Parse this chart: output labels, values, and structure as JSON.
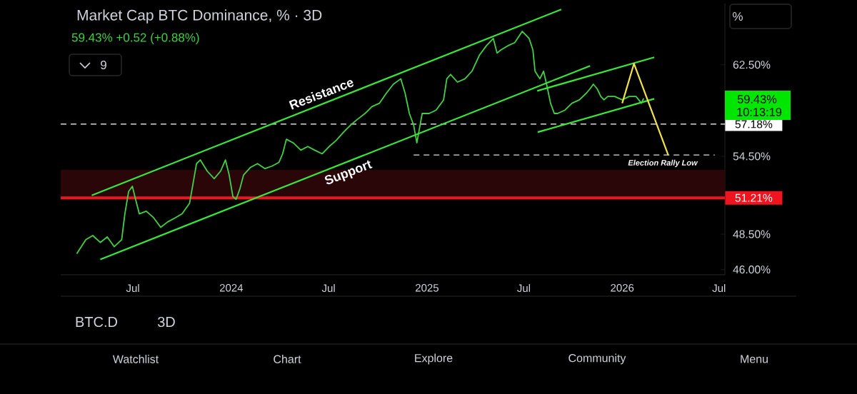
{
  "chart_data": {
    "type": "line",
    "title": "Market Cap BTC Dominance, % · 3D",
    "subtitle": "59.43% +0.52 (+0.88%)",
    "log": "y",
    "xlim": [
      "2023-02-16",
      "2026-07-12"
    ],
    "ylim": [
      45.64,
      68.5
    ],
    "xticks": [
      {
        "value": "2023-07-01",
        "label": "Jul"
      },
      {
        "value": "2024-01-01",
        "label": "2024"
      },
      {
        "value": "2024-07-01",
        "label": "Jul"
      },
      {
        "value": "2025-01-01",
        "label": "2025"
      },
      {
        "value": "2025-07-01",
        "label": "Jul"
      },
      {
        "value": "2026-01-01",
        "label": "2026"
      },
      {
        "value": "2026-07-01",
        "label": "Jul"
      }
    ],
    "yticks": [
      {
        "value": 46,
        "label": "46.00%"
      },
      {
        "value": 48.5,
        "label": "48.50%"
      },
      {
        "value": 54.5,
        "label": "54.50%"
      },
      {
        "value": 62.5,
        "label": "62.50%"
      }
    ],
    "series": [
      {
        "color": "#43d143",
        "x": [
          "2023-03-18",
          "2023-04-04",
          "2023-04-17",
          "2023-05-01",
          "2023-05-14",
          "2023-05-27",
          "2023-06-10",
          "2023-06-16",
          "2023-06-23",
          "2023-06-30",
          "2023-07-06",
          "2023-07-13",
          "2023-07-26",
          "2023-08-09",
          "2023-08-22",
          "2023-09-04",
          "2023-09-18",
          "2023-10-01",
          "2023-10-15",
          "2023-10-21",
          "2023-10-28",
          "2023-11-04",
          "2023-11-17",
          "2023-11-30",
          "2023-12-12",
          "2023-12-21",
          "2023-12-28",
          "2024-01-04",
          "2024-01-10",
          "2024-01-17",
          "2024-01-24",
          "2024-02-06",
          "2024-02-19",
          "2024-03-04",
          "2024-03-17",
          "2024-03-30",
          "2024-04-06",
          "2024-04-13",
          "2024-04-26",
          "2024-05-10",
          "2024-05-23",
          "2024-06-05",
          "2024-06-19",
          "2024-07-02",
          "2024-07-15",
          "2024-07-29",
          "2024-08-11",
          "2024-08-24",
          "2024-09-07",
          "2024-09-20",
          "2024-10-04",
          "2024-10-17",
          "2024-10-30",
          "2024-11-13",
          "2024-11-21",
          "2024-11-29",
          "2024-12-07",
          "2024-12-13",
          "2024-12-23",
          "2025-01-05",
          "2025-01-18",
          "2025-02-01",
          "2025-02-07",
          "2025-02-14",
          "2025-02-27",
          "2025-03-13",
          "2025-03-26",
          "2025-04-09",
          "2025-04-22",
          "2025-05-05",
          "2025-05-12",
          "2025-05-19",
          "2025-06-01",
          "2025-06-14",
          "2025-06-28",
          "2025-07-11",
          "2025-07-18",
          "2025-07-22",
          "2025-07-31",
          "2025-08-07",
          "2025-08-13",
          "2025-08-20",
          "2025-08-27",
          "2025-09-02",
          "2025-09-16",
          "2025-09-29",
          "2025-10-13",
          "2025-10-26",
          "2025-11-02",
          "2025-11-08",
          "2025-11-15",
          "2025-11-22",
          "2025-11-28",
          "2025-12-05",
          "2025-12-18",
          "2026-01-01",
          "2026-01-14",
          "2026-01-27",
          "2026-02-06",
          "2026-02-10"
        ],
        "values": [
          47.1,
          48.1,
          48.4,
          47.9,
          48.3,
          47.6,
          48.1,
          50.0,
          51.7,
          52.1,
          51.1,
          50.0,
          50.2,
          49.7,
          49.0,
          49.4,
          49.7,
          50.0,
          50.8,
          52.2,
          53.9,
          54.2,
          53.3,
          52.7,
          53.3,
          54.2,
          53.0,
          51.3,
          51.1,
          51.9,
          53.0,
          53.6,
          53.9,
          53.5,
          53.7,
          54.0,
          54.7,
          55.9,
          55.6,
          55.0,
          55.3,
          55.0,
          54.7,
          55.3,
          55.8,
          56.5,
          57.1,
          57.6,
          58.1,
          58.7,
          59.0,
          59.9,
          60.7,
          61.2,
          59.9,
          58.1,
          57.1,
          55.6,
          58.1,
          58.1,
          58.4,
          59.3,
          61.2,
          61.6,
          60.9,
          61.2,
          61.9,
          63.4,
          64.3,
          65.0,
          63.6,
          63.9,
          64.3,
          64.6,
          65.7,
          65.0,
          63.9,
          61.9,
          61.2,
          61.9,
          60.6,
          59.0,
          58.1,
          58.1,
          58.4,
          59.0,
          59.3,
          59.9,
          60.3,
          60.7,
          60.3,
          59.6,
          59.3,
          59.6,
          59.6,
          59.3,
          59.6,
          59.6,
          59.0,
          59.43
        ]
      },
      {
        "type": "line",
        "color": "#39e639",
        "x": [
          "2023-04-15",
          "2025-09-09"
        ],
        "values": [
          51.4,
          67.9
        ]
      },
      {
        "type": "line",
        "color": "#39e639",
        "x": [
          "2023-05-01",
          "2025-11-02"
        ],
        "values": [
          46.7,
          62.4
        ]
      },
      {
        "type": "line",
        "color": "#39e639",
        "x": [
          "2025-07-26",
          "2026-03-02"
        ],
        "values": [
          60.1,
          63.2
        ]
      },
      {
        "type": "line",
        "color": "#39e639",
        "x": [
          "2025-07-27",
          "2026-03-02"
        ],
        "values": [
          56.5,
          59.4
        ]
      },
      {
        "type": "line",
        "color": "#f2e34a",
        "x": [
          "2026-01-01",
          "2026-01-23",
          "2026-03-28"
        ],
        "values": [
          59.0,
          62.6,
          54.6
        ]
      },
      {
        "type": "line",
        "color": "#e0e0e0",
        "line_style": "dashed",
        "x": [
          "2024-12-07",
          "2026-06-23"
        ],
        "values": [
          54.6,
          54.6
        ]
      }
    ],
    "ref_lines": [
      {
        "axis": "y",
        "value": 57.18,
        "label": "57.18%",
        "color": "#ffffff",
        "line_style": "dashed"
      },
      {
        "axis": "y",
        "value": 51.21,
        "label": "51.21%",
        "color": "#f0141e",
        "line_style": "solid"
      }
    ],
    "bands": [
      {
        "axis": "y",
        "from": 51.21,
        "to": 53.4,
        "color": "#2a0609"
      }
    ],
    "annotations": [
      "Resistance",
      "Support",
      "Election Rally Low",
      "59.43%",
      "10:13:19",
      "9",
      "%",
      "BTC.D",
      "3D",
      "Watchlist",
      "Chart",
      "Explore",
      "Community",
      "Menu"
    ]
  }
}
